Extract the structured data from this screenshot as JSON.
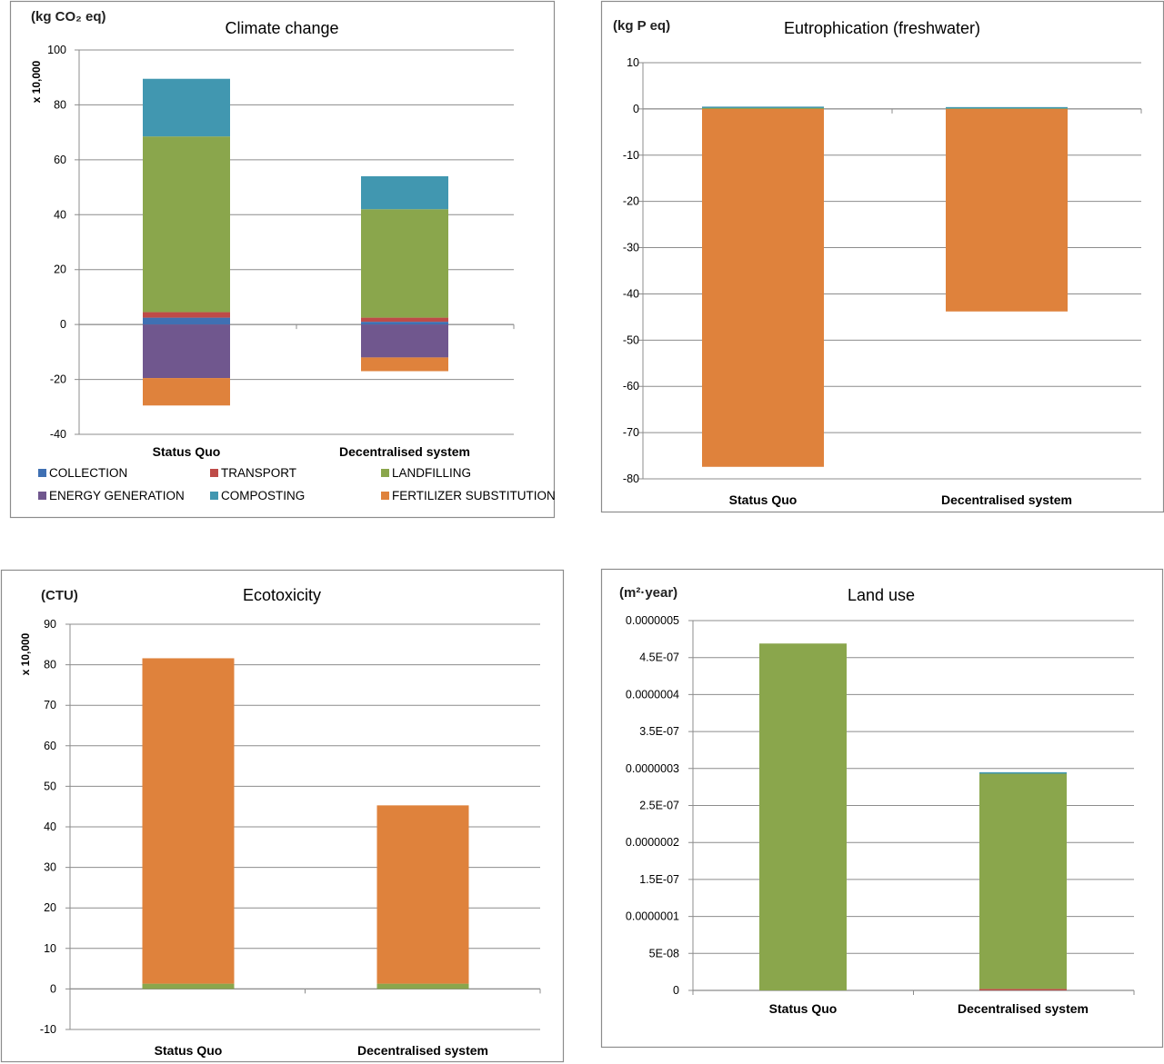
{
  "series_colors": {
    "COLLECTION": "#3f70b3",
    "TRANSPORT": "#be4b48",
    "LANDFILLING": "#8aa64c",
    "ENERGY GENERATION": "#70578e",
    "COMPOSTING": "#4197b0",
    "FERTILIZER SUBSTITUTION": "#df823c"
  },
  "chart_data": [
    {
      "type": "bar",
      "stacked": true,
      "title": "Climate change",
      "unit_label": "(kg CO₂ eq)",
      "multiplier_label": "x 10,000",
      "categories": [
        "Status Quo",
        "Decentralised system"
      ],
      "ylim": [
        -40,
        100
      ],
      "yticks": [
        100,
        80,
        60,
        40,
        20,
        0,
        -20,
        -40
      ],
      "tick_labels": [
        "100",
        "80",
        "60",
        "40",
        "20",
        "0",
        "-20",
        "-40"
      ],
      "grid": true,
      "legend": "bottom",
      "legend_entries": [
        "COLLECTION",
        "TRANSPORT",
        "LANDFILLING",
        "ENERGY GENERATION",
        "COMPOSTING",
        "FERTILIZER SUBSTITUTION"
      ],
      "series": [
        {
          "name": "COLLECTION",
          "values": [
            2.5,
            1.0
          ]
        },
        {
          "name": "TRANSPORT",
          "values": [
            2.0,
            1.5
          ]
        },
        {
          "name": "LANDFILLING",
          "values": [
            64.0,
            39.5
          ]
        },
        {
          "name": "COMPOSTING",
          "values": [
            21.0,
            12.0
          ]
        },
        {
          "name": "ENERGY GENERATION",
          "values": [
            -19.5,
            -12.0
          ]
        },
        {
          "name": "FERTILIZER SUBSTITUTION",
          "values": [
            -10.0,
            -5.0
          ]
        }
      ]
    },
    {
      "type": "bar",
      "stacked": true,
      "title": "Eutrophication (freshwater)",
      "unit_label": "(kg P eq)",
      "categories": [
        "Status Quo",
        "Decentralised system"
      ],
      "ylim": [
        -80,
        10
      ],
      "yticks": [
        10,
        0,
        -10,
        -20,
        -30,
        -40,
        -50,
        -60,
        -70,
        -80
      ],
      "tick_labels": [
        "10",
        "0",
        "-10",
        "-20",
        "-30",
        "-40",
        "-50",
        "-60",
        "-70",
        "-80"
      ],
      "grid": true,
      "series": [
        {
          "name": "LANDFILLING",
          "values": [
            0.3,
            0.1
          ]
        },
        {
          "name": "COMPOSTING",
          "values": [
            0.2,
            0.3
          ]
        },
        {
          "name": "FERTILIZER SUBSTITUTION",
          "values": [
            -77.4,
            -43.8
          ]
        }
      ]
    },
    {
      "type": "bar",
      "stacked": true,
      "title": "Ecotoxicity",
      "unit_label": "(CTU)",
      "multiplier_label": "x 10,000",
      "categories": [
        "Status Quo",
        "Decentralised system"
      ],
      "ylim": [
        -10,
        90
      ],
      "yticks": [
        90,
        80,
        70,
        60,
        50,
        40,
        30,
        20,
        10,
        0,
        -10
      ],
      "tick_labels": [
        "90",
        "80",
        "70",
        "60",
        "50",
        "40",
        "30",
        "20",
        "10",
        "0",
        "-10"
      ],
      "grid": true,
      "series": [
        {
          "name": "LANDFILLING",
          "values": [
            1.3,
            1.3
          ]
        },
        {
          "name": "FERTILIZER SUBSTITUTION",
          "values": [
            80.3,
            44.0
          ]
        }
      ]
    },
    {
      "type": "bar",
      "stacked": true,
      "title": "Land use",
      "unit_label": "(m²·year)",
      "categories": [
        "Status Quo",
        "Decentralised system"
      ],
      "ylim": [
        0,
        5e-07
      ],
      "yticks": [
        5e-07,
        4.5e-07,
        4e-07,
        3.5e-07,
        3e-07,
        2.5e-07,
        2e-07,
        1.5e-07,
        1e-07,
        5e-08,
        0
      ],
      "tick_labels": [
        "0.0000005",
        "4.5E-07",
        "0.0000004",
        "3.5E-07",
        "0.0000003",
        "2.5E-07",
        "0.0000002",
        "1.5E-07",
        "0.0000001",
        "5E-08",
        "0"
      ],
      "grid": true,
      "series": [
        {
          "name": "TRANSPORT",
          "values": [
            0,
            2e-09
          ]
        },
        {
          "name": "LANDFILLING",
          "values": [
            4.69e-07,
            2.91e-07
          ]
        },
        {
          "name": "COMPOSTING",
          "values": [
            0,
            2e-09
          ]
        }
      ]
    }
  ]
}
